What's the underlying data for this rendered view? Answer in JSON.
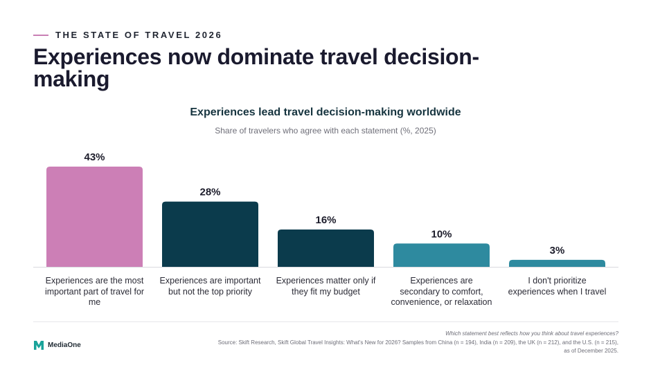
{
  "header": {
    "eyebrow": "THE STATE OF TRAVEL 2026",
    "headline": "Experiences now dominate travel decision-making"
  },
  "chart_data": {
    "type": "bar",
    "title": "Experiences lead travel decision-making worldwide",
    "subtitle": "Share of travelers who agree with each statement (%, 2025)",
    "categories": [
      "Experiences are the most important part of travel for me",
      "Experiences are important but not the top priority",
      "Experiences matter only if they fit my budget",
      "Experiences are secondary to comfort, convenience, or relaxation",
      "I don't prioritize experiences when I travel"
    ],
    "values": [
      43,
      28,
      16,
      10,
      3
    ],
    "value_labels": [
      "43%",
      "28%",
      "16%",
      "10%",
      "3%"
    ],
    "colors": [
      "#cc7fb6",
      "#0b3b4c",
      "#0b3b4c",
      "#2e8a9f",
      "#2e8a9f"
    ],
    "ylim": [
      0,
      43
    ],
    "grid": false,
    "legend": "none"
  },
  "footer": {
    "question": "Which statement best reflects how you think about travel experiences?",
    "source": "Source: Skift Research, Skift Global Travel Insights: What's New for 2026? Samples from China (n = 194), India (n = 209), the UK (n = 212), and the U.S. (n = 215), as of December 2025.",
    "logo_text": "MediaOne",
    "logo_color": "#1aa39a"
  }
}
